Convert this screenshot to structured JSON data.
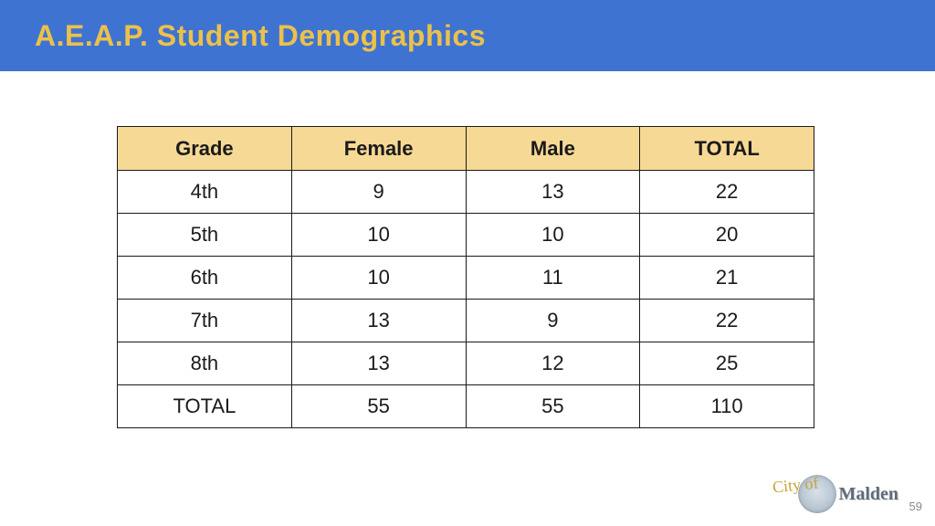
{
  "header": {
    "title": "A.E.A.P. Student Demographics",
    "bg_color": "#3e73d2",
    "title_color": "#ecc14a",
    "title_fontsize": 32
  },
  "table": {
    "type": "table",
    "header_bg": "#f6d994",
    "border_color": "#1a1a1a",
    "cell_bg": "#ffffff",
    "font_size": 22,
    "columns": [
      {
        "label": "Grade",
        "width_pct": 25
      },
      {
        "label": "Female",
        "width_pct": 25
      },
      {
        "label": "Male",
        "width_pct": 25
      },
      {
        "label": "TOTAL",
        "width_pct": 25
      }
    ],
    "rows": [
      [
        "4th",
        "9",
        "13",
        "22"
      ],
      [
        "5th",
        "10",
        "10",
        "20"
      ],
      [
        "6th",
        "10",
        "11",
        "21"
      ],
      [
        "7th",
        "13",
        "9",
        "22"
      ],
      [
        "8th",
        "13",
        "12",
        "25"
      ],
      [
        "TOTAL",
        "55",
        "55",
        "110"
      ]
    ]
  },
  "footer": {
    "page_number": "59",
    "logo_cityof": "City of",
    "logo_name": "Malden"
  }
}
